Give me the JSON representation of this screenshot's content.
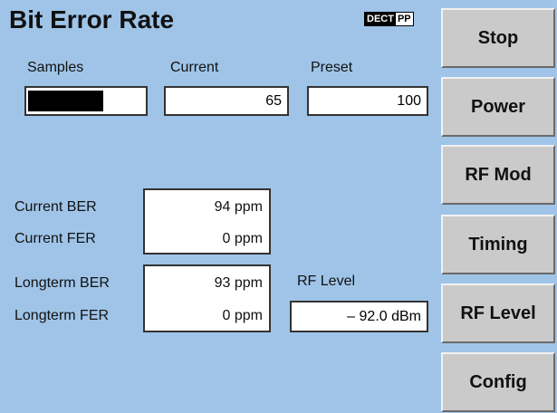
{
  "header": {
    "title": "Bit Error Rate",
    "badge": [
      "DECT",
      "PP"
    ]
  },
  "counters": {
    "samples": {
      "label": "Samples"
    },
    "current": {
      "label": "Current",
      "value": 65
    },
    "preset": {
      "label": "Preset",
      "value": 100
    }
  },
  "measurements": [
    {
      "label": "Current BER",
      "value": "94 ppm"
    },
    {
      "label": "Current FER",
      "value": "0 ppm"
    },
    {
      "label": "Longterm BER",
      "value": "93 ppm"
    },
    {
      "label": "Longterm FER",
      "value": "0 ppm"
    }
  ],
  "rf_level": {
    "label": "RF Level",
    "value": "– 92.0 dBm"
  },
  "buttons": [
    "Stop",
    "Power",
    "RF Mod",
    "Timing",
    "RF Level",
    "Config"
  ]
}
